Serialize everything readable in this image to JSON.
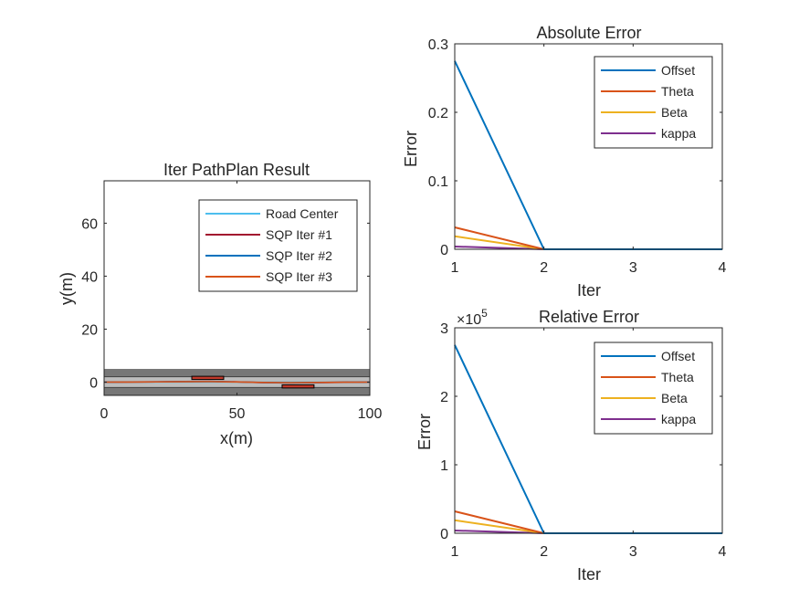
{
  "chart_data": [
    {
      "id": "pathplan",
      "type": "line",
      "title": "Iter PathPlan Result",
      "xlabel": "x(m)",
      "ylabel": "y(m)",
      "xlim": [
        0,
        100
      ],
      "ylim": [
        -5,
        76
      ],
      "xticks": [
        0,
        50,
        100
      ],
      "yticks": [
        0,
        20,
        40,
        60
      ],
      "grid": false,
      "legend_position": "top-right",
      "road": {
        "outer": [
          -5,
          5
        ],
        "inner": [
          -2,
          2
        ],
        "outer_color": "#777777",
        "inner_color": "#bdbdbd"
      },
      "obstacles": [
        {
          "x": [
            33,
            45
          ],
          "y": [
            1.0,
            2.2
          ]
        },
        {
          "x": [
            67,
            79
          ],
          "y": [
            -2.2,
            -1.0
          ]
        }
      ],
      "series": [
        {
          "name": "Road Center",
          "color": "#4dbeee",
          "x": [
            0,
            100
          ],
          "y": [
            0,
            0
          ]
        },
        {
          "name": "SQP Iter #1",
          "color": "#a2142f",
          "x": [
            0,
            10,
            20,
            30,
            40,
            50,
            60,
            70,
            80,
            90,
            100
          ],
          "y": [
            0,
            0.05,
            0.12,
            0.25,
            0.3,
            0.1,
            -0.2,
            -0.3,
            -0.2,
            -0.05,
            0
          ]
        },
        {
          "name": "SQP Iter #2",
          "color": "#0072bd",
          "x": [
            0,
            10,
            20,
            30,
            40,
            50,
            60,
            70,
            80,
            90,
            100
          ],
          "y": [
            0,
            0.04,
            0.1,
            0.2,
            0.25,
            0.08,
            -0.15,
            -0.25,
            -0.15,
            -0.04,
            0
          ]
        },
        {
          "name": "SQP Iter #3",
          "color": "#d95319",
          "x": [
            0,
            10,
            20,
            30,
            40,
            50,
            60,
            70,
            80,
            90,
            100
          ],
          "y": [
            0,
            0.03,
            0.08,
            0.15,
            0.2,
            0.05,
            -0.1,
            -0.2,
            -0.1,
            -0.03,
            0
          ]
        }
      ]
    },
    {
      "id": "abs",
      "type": "line",
      "title": "Absolute Error",
      "xlabel": "Iter",
      "ylabel": "Error",
      "exponent": "",
      "xlim": [
        1,
        4
      ],
      "ylim": [
        0,
        0.3
      ],
      "xticks": [
        1,
        2,
        3,
        4
      ],
      "yticks": [
        0,
        0.1,
        0.2,
        0.3
      ],
      "ytick_labels": [
        "0",
        "0.1",
        "0.2",
        "0.3"
      ],
      "grid": false,
      "legend_position": "top-right",
      "x": [
        1,
        2,
        3,
        4
      ],
      "series": [
        {
          "name": "Offset",
          "color": "#0072bd",
          "values": [
            0.275,
            0,
            0,
            0
          ]
        },
        {
          "name": "Theta",
          "color": "#d95319",
          "values": [
            0.032,
            0,
            0,
            0
          ]
        },
        {
          "name": "Beta",
          "color": "#edb120",
          "values": [
            0.019,
            0,
            0,
            0
          ]
        },
        {
          "name": "kappa",
          "color": "#7e2f8e",
          "values": [
            0.004,
            0,
            0,
            0
          ]
        }
      ]
    },
    {
      "id": "rel",
      "type": "line",
      "title": "Relative Error",
      "xlabel": "Iter",
      "ylabel": "Error",
      "exponent": "5",
      "exponent_base": "×10",
      "xlim": [
        1,
        4
      ],
      "ylim": [
        0,
        300000
      ],
      "xticks": [
        1,
        2,
        3,
        4
      ],
      "yticks": [
        0,
        100000,
        200000,
        300000
      ],
      "ytick_labels": [
        "0",
        "1",
        "2",
        "3"
      ],
      "grid": false,
      "legend_position": "top-right",
      "x": [
        1,
        2,
        3,
        4
      ],
      "series": [
        {
          "name": "Offset",
          "color": "#0072bd",
          "values": [
            275000,
            0,
            0,
            0
          ]
        },
        {
          "name": "Theta",
          "color": "#d95319",
          "values": [
            32000,
            0,
            0,
            0
          ]
        },
        {
          "name": "Beta",
          "color": "#edb120",
          "values": [
            19000,
            0,
            0,
            0
          ]
        },
        {
          "name": "kappa",
          "color": "#7e2f8e",
          "values": [
            4000,
            0,
            0,
            0
          ]
        }
      ]
    }
  ]
}
